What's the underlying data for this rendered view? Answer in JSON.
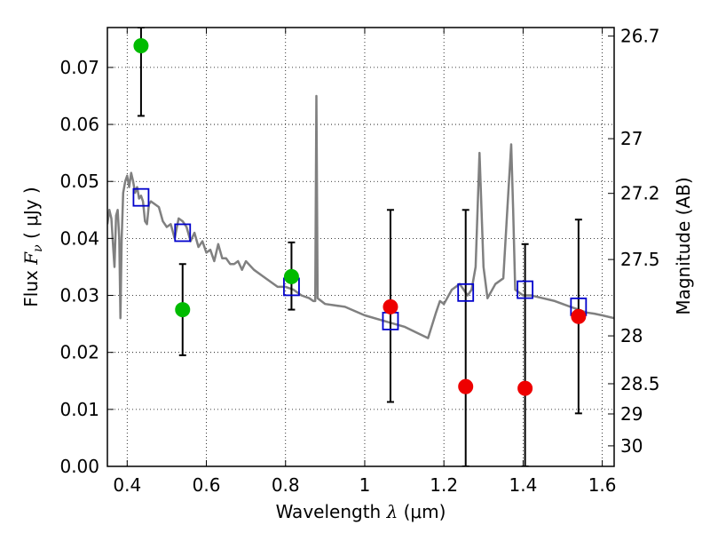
{
  "chart_data": {
    "type": "scatter",
    "xlabel": "Wavelength  λ (μm)",
    "ylabel": "Flux  F_ν  ( μJy )",
    "ylabel_parts": {
      "pre": "Flux  ",
      "var": "F",
      "sub": "ν",
      "post": "  ( μJy )"
    },
    "xlabel_parts": {
      "pre": "Wavelength  ",
      "var": "λ",
      "post": " (μm)"
    },
    "y2label": "Magnitude (AB)",
    "xlim": [
      0.35,
      1.63
    ],
    "ylim": [
      0.0,
      0.077
    ],
    "grid": true,
    "x_ticks": [
      {
        "v": 0.4,
        "label": "0.4"
      },
      {
        "v": 0.6,
        "label": "0.6"
      },
      {
        "v": 0.8,
        "label": "0.8"
      },
      {
        "v": 1.0,
        "label": "1"
      },
      {
        "v": 1.2,
        "label": "1.2"
      },
      {
        "v": 1.4,
        "label": "1.4"
      },
      {
        "v": 1.6,
        "label": "1.6"
      }
    ],
    "y_ticks": [
      {
        "v": 0.0,
        "label": "0.00"
      },
      {
        "v": 0.01,
        "label": "0.01"
      },
      {
        "v": 0.02,
        "label": "0.02"
      },
      {
        "v": 0.03,
        "label": "0.03"
      },
      {
        "v": 0.04,
        "label": "0.04"
      },
      {
        "v": 0.05,
        "label": "0.05"
      },
      {
        "v": 0.06,
        "label": "0.06"
      },
      {
        "v": 0.07,
        "label": "0.07"
      }
    ],
    "y2_ticks": [
      {
        "flux": 0.0755,
        "label": "26.7"
      },
      {
        "flux": 0.0575,
        "label": "27"
      },
      {
        "flux": 0.0479,
        "label": "27.2"
      },
      {
        "flux": 0.0363,
        "label": "27.5"
      },
      {
        "flux": 0.0229,
        "label": "28"
      },
      {
        "flux": 0.0145,
        "label": "28.5"
      },
      {
        "flux": 0.0092,
        "label": "29"
      },
      {
        "flux": 0.0036,
        "label": "30"
      }
    ],
    "series": [
      {
        "kind": "line",
        "color": "#808080",
        "points": [
          [
            0.35,
            0.0425
          ],
          [
            0.355,
            0.045
          ],
          [
            0.36,
            0.0435
          ],
          [
            0.365,
            0.038
          ],
          [
            0.368,
            0.035
          ],
          [
            0.372,
            0.044
          ],
          [
            0.376,
            0.045
          ],
          [
            0.38,
            0.04
          ],
          [
            0.383,
            0.026
          ],
          [
            0.386,
            0.04
          ],
          [
            0.39,
            0.048
          ],
          [
            0.395,
            0.05
          ],
          [
            0.4,
            0.051
          ],
          [
            0.405,
            0.049
          ],
          [
            0.41,
            0.0515
          ],
          [
            0.415,
            0.05
          ],
          [
            0.42,
            0.048
          ],
          [
            0.425,
            0.049
          ],
          [
            0.43,
            0.047
          ],
          [
            0.435,
            0.0475
          ],
          [
            0.44,
            0.0465
          ],
          [
            0.445,
            0.043
          ],
          [
            0.45,
            0.0425
          ],
          [
            0.455,
            0.046
          ],
          [
            0.46,
            0.0465
          ],
          [
            0.47,
            0.046
          ],
          [
            0.48,
            0.0455
          ],
          [
            0.49,
            0.043
          ],
          [
            0.5,
            0.042
          ],
          [
            0.51,
            0.0425
          ],
          [
            0.52,
            0.04
          ],
          [
            0.53,
            0.0435
          ],
          [
            0.54,
            0.043
          ],
          [
            0.55,
            0.042
          ],
          [
            0.56,
            0.0395
          ],
          [
            0.57,
            0.041
          ],
          [
            0.58,
            0.0385
          ],
          [
            0.59,
            0.0395
          ],
          [
            0.6,
            0.0375
          ],
          [
            0.61,
            0.038
          ],
          [
            0.62,
            0.036
          ],
          [
            0.63,
            0.039
          ],
          [
            0.64,
            0.0365
          ],
          [
            0.65,
            0.0365
          ],
          [
            0.66,
            0.0355
          ],
          [
            0.67,
            0.0355
          ],
          [
            0.68,
            0.036
          ],
          [
            0.69,
            0.0345
          ],
          [
            0.7,
            0.036
          ],
          [
            0.72,
            0.0345
          ],
          [
            0.74,
            0.0335
          ],
          [
            0.76,
            0.0325
          ],
          [
            0.78,
            0.0315
          ],
          [
            0.8,
            0.0315
          ],
          [
            0.82,
            0.031
          ],
          [
            0.84,
            0.03
          ],
          [
            0.86,
            0.0295
          ],
          [
            0.87,
            0.029
          ],
          [
            0.875,
            0.029
          ],
          [
            0.878,
            0.065
          ],
          [
            0.881,
            0.0295
          ],
          [
            0.9,
            0.0285
          ],
          [
            0.95,
            0.028
          ],
          [
            1.0,
            0.0265
          ],
          [
            1.05,
            0.0255
          ],
          [
            1.1,
            0.0245
          ],
          [
            1.13,
            0.0235
          ],
          [
            1.16,
            0.0225
          ],
          [
            1.18,
            0.027
          ],
          [
            1.19,
            0.029
          ],
          [
            1.2,
            0.0285
          ],
          [
            1.22,
            0.031
          ],
          [
            1.24,
            0.032
          ],
          [
            1.26,
            0.03
          ],
          [
            1.27,
            0.031
          ],
          [
            1.28,
            0.035
          ],
          [
            1.29,
            0.055
          ],
          [
            1.3,
            0.035
          ],
          [
            1.31,
            0.0295
          ],
          [
            1.33,
            0.032
          ],
          [
            1.35,
            0.033
          ],
          [
            1.36,
            0.045
          ],
          [
            1.37,
            0.0565
          ],
          [
            1.375,
            0.045
          ],
          [
            1.38,
            0.031
          ],
          [
            1.4,
            0.03
          ],
          [
            1.42,
            0.03
          ],
          [
            1.45,
            0.0295
          ],
          [
            1.48,
            0.029
          ],
          [
            1.5,
            0.0285
          ],
          [
            1.52,
            0.028
          ],
          [
            1.54,
            0.0275
          ],
          [
            1.56,
            0.027
          ],
          [
            1.58,
            0.0268
          ],
          [
            1.6,
            0.0265
          ],
          [
            1.63,
            0.026
          ]
        ]
      },
      {
        "kind": "squares",
        "color": "#0000cc",
        "points": [
          [
            0.435,
            0.0472
          ],
          [
            0.54,
            0.041
          ],
          [
            0.815,
            0.0315
          ],
          [
            1.065,
            0.0255
          ],
          [
            1.255,
            0.0305
          ],
          [
            1.405,
            0.031
          ],
          [
            1.54,
            0.028
          ]
        ]
      },
      {
        "kind": "detections",
        "color": "#00bb00",
        "points": [
          {
            "x": 0.435,
            "y": 0.0738,
            "lo": 0.0615,
            "hi": 0.077
          },
          {
            "x": 0.54,
            "y": 0.0275,
            "lo": 0.0195,
            "hi": 0.0355
          },
          {
            "x": 0.815,
            "y": 0.0333,
            "lo": 0.0275,
            "hi": 0.0393
          }
        ]
      },
      {
        "kind": "upper-limits",
        "color": "#ee0000",
        "points": [
          {
            "x": 1.065,
            "y": 0.028,
            "lo": 0.0113,
            "hi": 0.045
          },
          {
            "x": 1.255,
            "y": 0.014,
            "lo": 0.0,
            "hi": 0.045
          },
          {
            "x": 1.405,
            "y": 0.0137,
            "lo": 0.0,
            "hi": 0.039
          },
          {
            "x": 1.54,
            "y": 0.0263,
            "lo": 0.0093,
            "hi": 0.0433
          }
        ]
      }
    ]
  }
}
